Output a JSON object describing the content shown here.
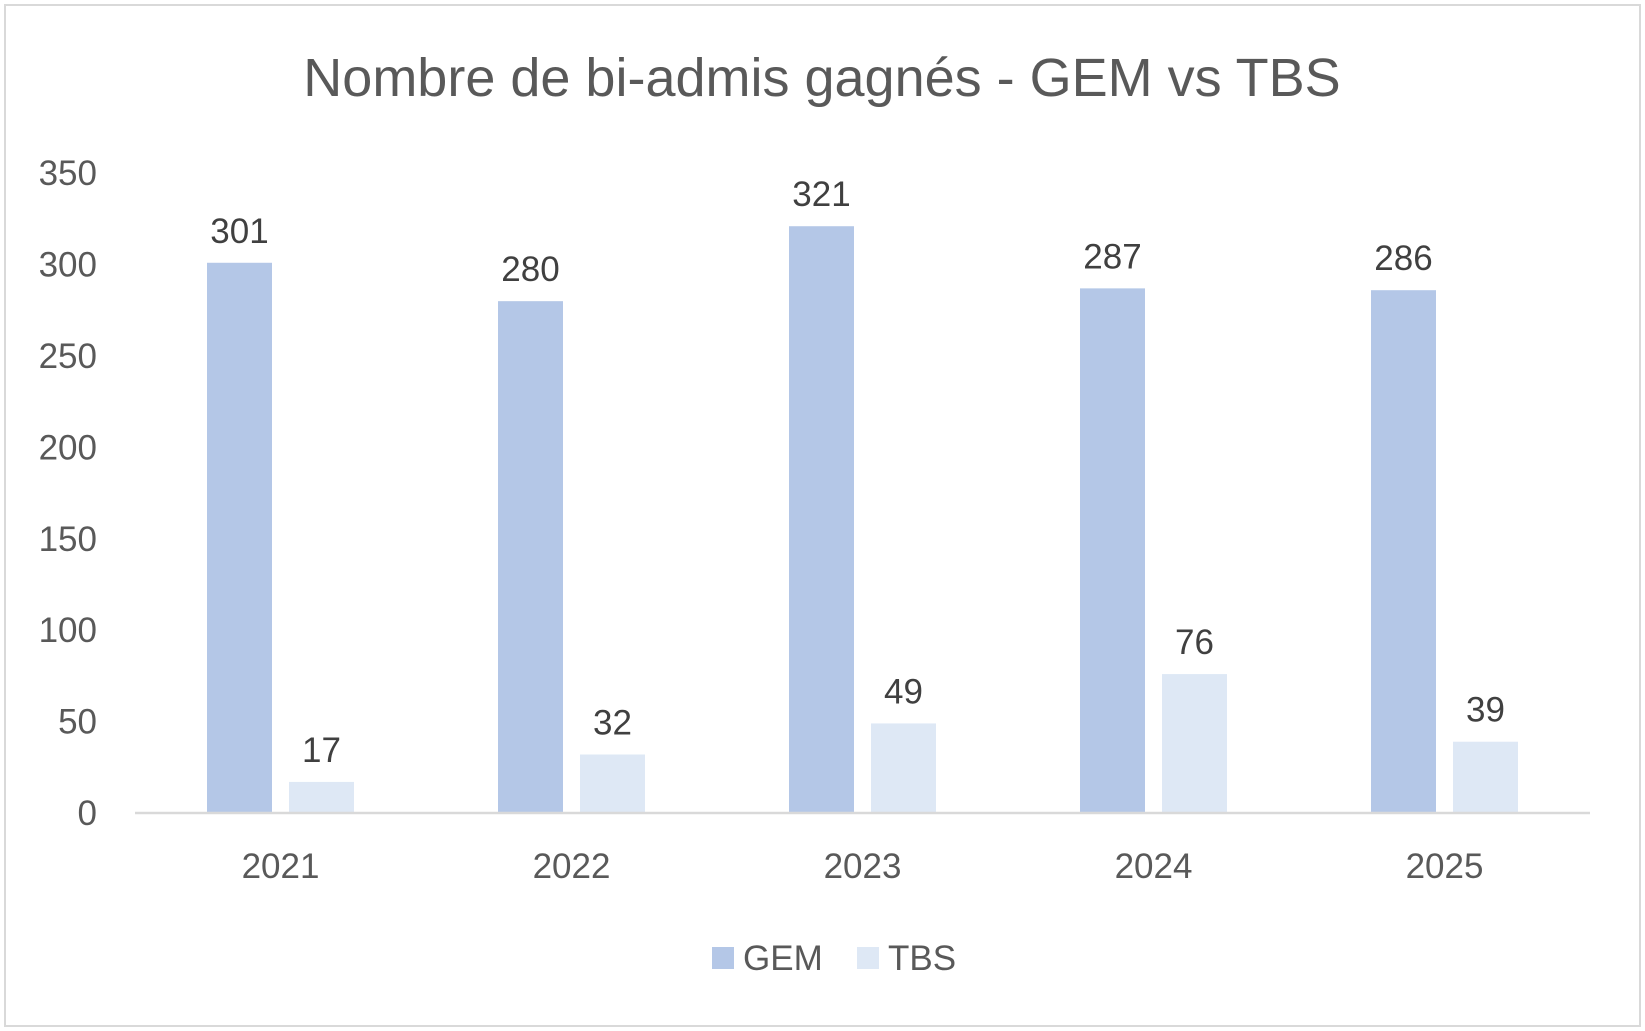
{
  "chart_data": {
    "type": "bar",
    "title": "Nombre de bi-admis gagnés - GEM vs TBS",
    "xlabel": "",
    "ylabel": "",
    "categories": [
      "2021",
      "2022",
      "2023",
      "2024",
      "2025"
    ],
    "series": [
      {
        "name": "GEM",
        "values": [
          301,
          280,
          321,
          287,
          286
        ],
        "color": "#b4c7e7"
      },
      {
        "name": "TBS",
        "values": [
          17,
          32,
          49,
          76,
          39
        ],
        "color": "#dee8f5"
      }
    ],
    "ylim": [
      0,
      350
    ],
    "yticks": [
      0,
      50,
      100,
      150,
      200,
      250,
      300,
      350
    ],
    "ytick_labels": [
      "0",
      "50",
      "100",
      "150",
      "200",
      "250",
      "300",
      "350"
    ],
    "grid": false,
    "data_labels": true,
    "legend": "bottom",
    "axis_color": "#d9d9d9",
    "text_color": "#595959"
  }
}
